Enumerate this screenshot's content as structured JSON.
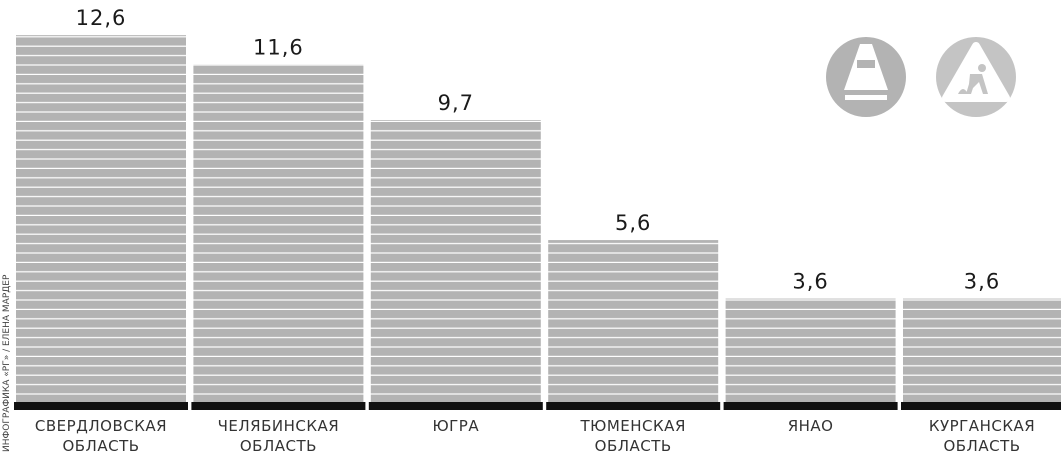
{
  "chart_data": {
    "type": "bar",
    "credit": "ИНФОГРАФИКА «РГ» / ЕЛЕНА МАРДЕР",
    "categories": [
      [
        "СВЕРДЛОВСКАЯ",
        "ОБЛАСТЬ"
      ],
      [
        "ЧЕЛЯБИНСКАЯ",
        "ОБЛАСТЬ"
      ],
      [
        "ЮГРА"
      ],
      [
        "ТЮМЕНСКАЯ",
        "ОБЛАСТЬ"
      ],
      [
        "ЯНАО"
      ],
      [
        "КУРГАНСКАЯ",
        "ОБЛАСТЬ"
      ]
    ],
    "values": [
      12.6,
      11.6,
      9.7,
      5.6,
      3.6,
      3.6
    ],
    "value_labels": [
      "12,6",
      "11,6",
      "9,7",
      "5,6",
      "3,6",
      "3,6"
    ],
    "color": "#b3b3b3",
    "ylim": [
      0,
      13.8
    ]
  }
}
